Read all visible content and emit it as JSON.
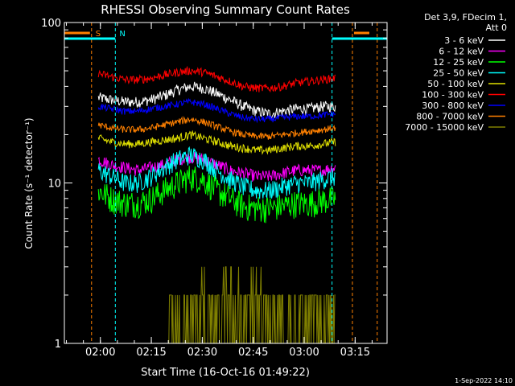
{
  "chart_data": {
    "type": "line",
    "title": "RHESSI Observing Summary Count Rates",
    "xlabel": "Start Time (16-Oct-16 01:49:22)",
    "ylabel": "Count Rate (s⁻¹ detector⁻¹)",
    "yscale": "log",
    "ylim": [
      1,
      100
    ],
    "y_ticks": [
      1,
      10,
      100
    ],
    "x_range_minutes": [
      0,
      95
    ],
    "x_ticks": [
      {
        "label": "02:00",
        "minute": 10.6
      },
      {
        "label": "02:15",
        "minute": 25.6
      },
      {
        "label": "02:30",
        "minute": 40.6
      },
      {
        "label": "02:45",
        "minute": 55.6
      },
      {
        "label": "03:00",
        "minute": 70.6
      },
      {
        "label": "03:15",
        "minute": 85.6
      }
    ],
    "grid": false,
    "legend_position": "top-right",
    "legend_header": [
      "Det 3,9, FDecim 1,",
      "Att 0"
    ],
    "data_minutes": [
      10.0,
      79.8
    ],
    "series": [
      {
        "name": "3 - 6 keV",
        "color": "#ffffff",
        "profile": [
          34,
          33,
          32,
          32,
          33,
          35,
          38,
          40,
          39,
          36,
          33,
          30,
          28,
          27,
          28,
          29,
          29,
          30,
          30
        ],
        "noise": 0.08
      },
      {
        "name": "6 - 12 keV",
        "color": "#ff00ff",
        "profile": [
          14,
          13,
          12.5,
          12,
          12.5,
          13,
          14,
          14.5,
          14,
          13,
          12,
          11.5,
          11,
          11,
          11.5,
          12,
          12,
          12,
          12.5
        ],
        "noise": 0.09
      },
      {
        "name": "12 - 25 keV",
        "color": "#00ff00",
        "profile": [
          9,
          8,
          7.5,
          7.5,
          8,
          9,
          10,
          11,
          10.5,
          9,
          8,
          7.2,
          7,
          7,
          7.2,
          7.5,
          7.5,
          7.8,
          8
        ],
        "noise": 0.2
      },
      {
        "name": "25 - 50 keV",
        "color": "#00ffff",
        "profile": [
          12,
          11,
          10,
          10,
          11,
          12.5,
          14,
          15,
          14,
          12,
          10.5,
          9.5,
          9,
          9,
          9.5,
          10,
          10,
          10.5,
          11
        ],
        "noise": 0.14
      },
      {
        "name": "50 - 100 keV",
        "color": "#e0e000",
        "profile": [
          19,
          18,
          17.5,
          17.5,
          18,
          18.5,
          19,
          20,
          19,
          18,
          17,
          16.5,
          16,
          16,
          16.5,
          17,
          17,
          17.5,
          18
        ],
        "noise": 0.06
      },
      {
        "name": "100 - 300 keV",
        "color": "#ff0000",
        "profile": [
          48,
          46,
          44,
          44,
          45,
          47,
          49,
          50,
          49,
          46,
          43,
          40,
          39,
          39,
          40,
          42,
          43,
          44,
          45
        ],
        "noise": 0.06
      },
      {
        "name": "300 - 800 keV",
        "color": "#0000ff",
        "profile": [
          30,
          29,
          28,
          28,
          29,
          30,
          31,
          32,
          31,
          29,
          27,
          25.5,
          25,
          25,
          25.5,
          26,
          26,
          26.5,
          27
        ],
        "noise": 0.05
      },
      {
        "name": "800 - 7000 keV",
        "color": "#ff8000",
        "profile": [
          23,
          22,
          21.5,
          21.5,
          22,
          23,
          24,
          25,
          24,
          22.5,
          21,
          20,
          19.5,
          19.5,
          20,
          20.5,
          21,
          21.5,
          22
        ],
        "noise": 0.05
      },
      {
        "name": "7000 - 15000 keV",
        "color": "#808000",
        "profile": [
          1,
          1,
          1,
          1,
          1,
          1,
          1,
          1,
          1,
          1,
          1,
          1,
          1,
          1,
          1,
          1,
          1,
          1,
          1
        ],
        "noise": 0
      }
    ],
    "annotations": [
      {
        "label": "S",
        "color": "#ff8000",
        "minute": 8.0
      },
      {
        "label": "N",
        "color": "#00ffff",
        "minute": 15.0
      },
      {
        "label": "",
        "color": "#00ffff",
        "minute": 78.8
      },
      {
        "label": "",
        "color": "#ff8000",
        "minute": 84.8
      },
      {
        "label": "",
        "color": "#ff8000",
        "minute": 92.1
      }
    ]
  },
  "footer_timestamp": "1-Sep-2022 14:10"
}
